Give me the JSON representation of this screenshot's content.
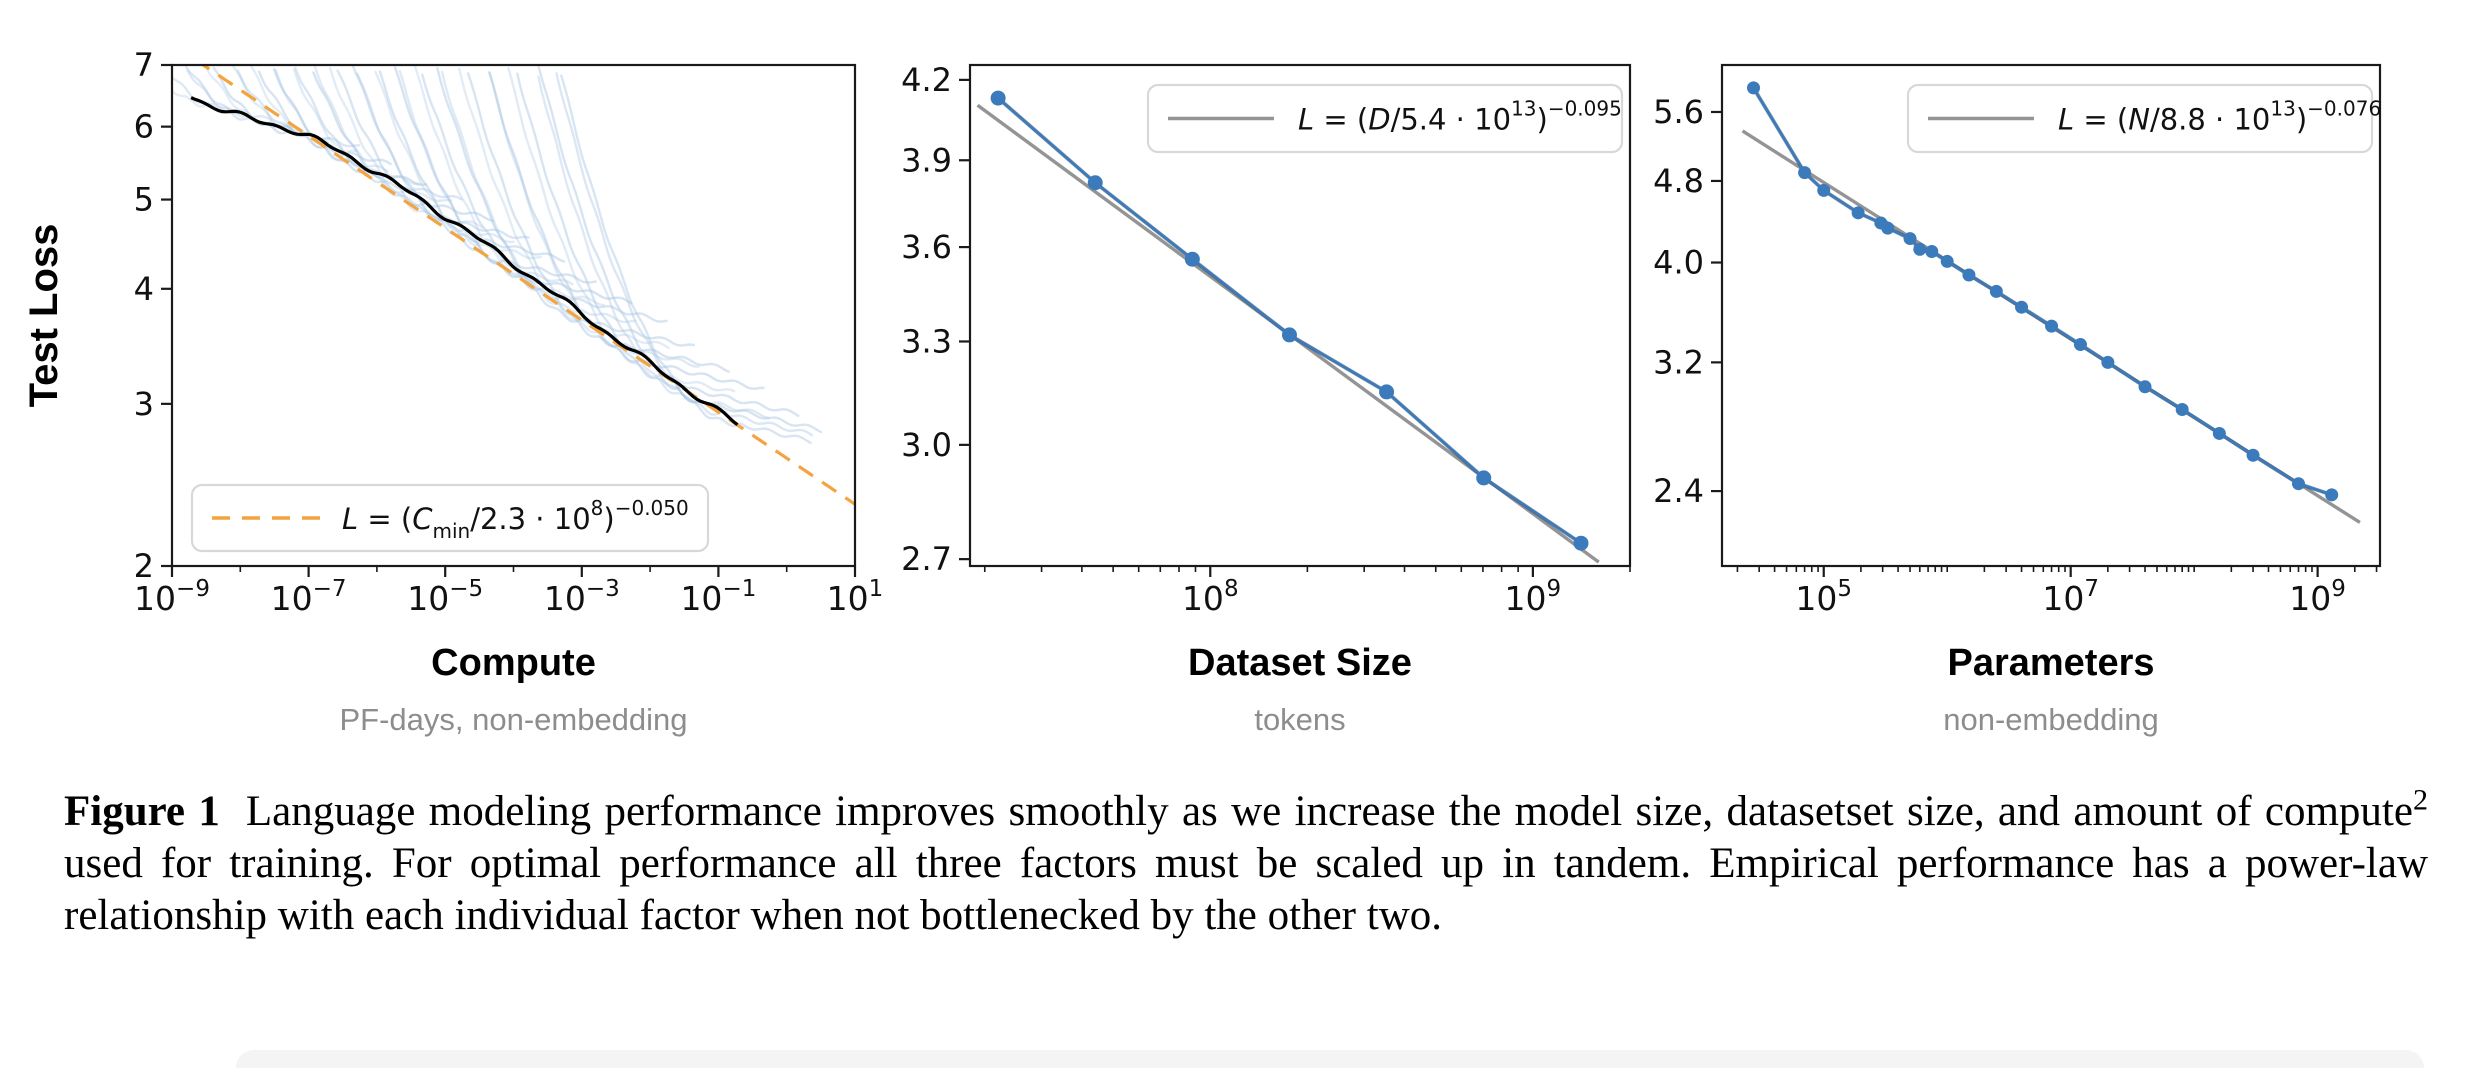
{
  "figure": {
    "caption": {
      "label": "Figure 1",
      "body_pre": "Language modeling performance improves smoothly as we increase the model size, datasetset size, and amount of compute",
      "superscript": "2",
      "body_post": " used for training.  For optimal performance all three factors must be scaled up in tandem.  Empirical performance has a power-law relationship with each individual factor when not bottlenecked by the other two."
    }
  },
  "colors": {
    "spine": "#1a1a1a",
    "tick_label": "#111111",
    "subtitle_gray": "#8d8d8d",
    "legend_border": "#d8d8d8",
    "orange_fit": "#f4a43f",
    "gray_fit": "#949494",
    "data_blue": "#3b7bbc",
    "data_dark_blue": "#1c3d5c",
    "curve_blue": "#a7c4e2",
    "envelope_black": "#000000"
  },
  "chart_data": [
    {
      "name": "compute",
      "type": "line",
      "title": "Compute",
      "subtitle": "PF-days, non-embedding",
      "ylabel": "Test Loss",
      "xscale": "log",
      "yscale": "log",
      "xlim": [
        1e-09,
        10
      ],
      "ylim": [
        2,
        7
      ],
      "xticks": [
        -9,
        -7,
        -5,
        -3,
        -1,
        1
      ],
      "minor_subs": false,
      "yticks": [
        7,
        6,
        5,
        4,
        3,
        2
      ],
      "ytick_labels": [
        "7",
        "6",
        "5",
        "4",
        "3",
        "2"
      ],
      "legend": {
        "position": "lower-left",
        "sample": "dashed-orange",
        "tokens": [
          [
            "i",
            "L"
          ],
          [
            "n",
            " = ("
          ],
          [
            "i",
            "C"
          ],
          [
            "sub",
            "min"
          ],
          [
            "n",
            "/2.3 · 10"
          ],
          [
            "sup",
            "8"
          ],
          [
            "n",
            ")"
          ],
          [
            "sup",
            "−0.050"
          ]
        ]
      },
      "fit": {
        "coef": 230000000.0,
        "exponent": -0.05,
        "color": "#f4a43f",
        "style": "dashed"
      },
      "envelope": {
        "color": "#000000",
        "range": [
          -8.72,
          -0.68
        ],
        "bump": [
          0.03,
          -5,
          6,
          0.095,
          -8.75,
          1.8
        ]
      },
      "curves_color": "#a7c4e2",
      "curves": [
        [
          -8.45,
          0.14,
          0.3,
          0.3
        ],
        [
          -8.15,
          0.125,
          0.35,
          0.38
        ],
        [
          -7.9,
          0.15,
          0.4,
          0.35
        ],
        [
          -7.65,
          0.11,
          0.45,
          0.42
        ],
        [
          -7.45,
          0.135,
          0.3,
          0.3
        ],
        [
          -7.25,
          0.12,
          0.55,
          0.45
        ],
        [
          -7.05,
          0.15,
          0.4,
          0.33
        ],
        [
          -6.85,
          0.115,
          0.6,
          0.4
        ],
        [
          -6.65,
          0.14,
          0.35,
          0.3
        ],
        [
          -6.45,
          0.125,
          0.7,
          0.45
        ],
        [
          -6.25,
          0.15,
          0.45,
          0.35
        ],
        [
          -6.05,
          0.118,
          0.8,
          0.48
        ],
        [
          -5.85,
          0.138,
          0.5,
          0.33
        ],
        [
          -5.65,
          0.122,
          0.9,
          0.42
        ],
        [
          -5.45,
          0.148,
          0.55,
          0.36
        ],
        [
          -5.25,
          0.115,
          1.0,
          0.47
        ],
        [
          -5.05,
          0.135,
          0.6,
          0.32
        ],
        [
          -4.85,
          0.125,
          1.1,
          0.44
        ],
        [
          -4.65,
          0.145,
          0.65,
          0.35
        ],
        [
          -4.45,
          0.118,
          1.2,
          0.46
        ],
        [
          -4.25,
          0.138,
          0.7,
          0.33
        ],
        [
          -4.05,
          0.126,
          1.3,
          0.45
        ],
        [
          -3.85,
          0.147,
          0.75,
          0.36
        ],
        [
          -3.65,
          0.117,
          1.4,
          0.47
        ],
        [
          -3.45,
          0.136,
          0.8,
          0.32
        ],
        [
          -3.25,
          0.124,
          1.5,
          0.44
        ],
        [
          -3.05,
          0.144,
          0.85,
          0.35
        ],
        [
          -2.85,
          0.119,
          1.55,
          0.46
        ],
        [
          -2.62,
          0.134,
          0.9,
          0.33
        ],
        [
          -2.4,
          0.127,
          1.6,
          0.45
        ],
        [
          -2.18,
          0.142,
          0.95,
          0.36
        ],
        [
          -1.95,
          0.12,
          1.65,
          0.47
        ],
        [
          -1.72,
          0.133,
          1.0,
          0.34
        ],
        [
          -1.5,
          0.126,
          1.7,
          0.45
        ],
        [
          -1.28,
          0.14,
          1.05,
          0.37
        ],
        [
          -1.05,
          0.122,
          1.6,
          0.46
        ],
        [
          -0.88,
          0.132,
          1.3,
          0.4
        ],
        [
          -0.72,
          0.125,
          1.1,
          0.44
        ]
      ]
    },
    {
      "name": "dataset-size",
      "type": "scatter-line",
      "title": "Dataset Size",
      "subtitle": "tokens",
      "xscale": "log",
      "yscale": "log",
      "xlim": [
        18000000.0,
        2000000000.0
      ],
      "ylim": [
        2.683,
        4.258
      ],
      "xticks": [
        8,
        9
      ],
      "minor_subs": true,
      "yticks": [
        4.2,
        3.9,
        3.6,
        3.3,
        3.0,
        2.7
      ],
      "ytick_labels": [
        "4.2",
        "3.9",
        "3.6",
        "3.3",
        "3.0",
        "2.7"
      ],
      "legend": {
        "position": "upper-right",
        "sample": "solid-gray",
        "tokens": [
          [
            "i",
            "L"
          ],
          [
            "n",
            " = ("
          ],
          [
            "i",
            "D"
          ],
          [
            "n",
            "/5.4 · 10"
          ],
          [
            "sup",
            "13"
          ],
          [
            "n",
            ")"
          ],
          [
            "sup",
            "−0.095"
          ]
        ]
      },
      "fit": {
        "scale": 54000000000000.0,
        "exponent": -0.095,
        "color": "#949494",
        "range": [
          19000000.0,
          1600000000.0
        ],
        "style": "solid"
      },
      "series_color": "#3b7bbc",
      "series_dark": "#1c3d5c",
      "marker_r": 7.5,
      "points": [
        [
          22000000.0,
          4.13
        ],
        [
          44000000.0,
          3.82
        ],
        [
          88000000.0,
          3.56
        ],
        [
          176000000.0,
          3.32
        ],
        [
          352000000.0,
          3.15
        ],
        [
          704000000.0,
          2.91
        ],
        [
          1410000000.0,
          2.74
        ]
      ]
    },
    {
      "name": "parameters",
      "type": "scatter-line",
      "title": "Parameters",
      "subtitle": "non-embedding",
      "xscale": "log",
      "yscale": "log",
      "xlim": [
        15000.0,
        3200000000.0
      ],
      "ylim": [
        2.03,
        6.22
      ],
      "xticks": [
        5,
        7,
        9
      ],
      "minor_subs": true,
      "yticks": [
        5.6,
        4.8,
        4.0,
        3.2,
        2.4
      ],
      "ytick_labels": [
        "5.6",
        "4.8",
        "4.0",
        "3.2",
        "2.4"
      ],
      "legend": {
        "position": "upper-right",
        "sample": "solid-gray",
        "tokens": [
          [
            "i",
            "L"
          ],
          [
            "n",
            " = ("
          ],
          [
            "i",
            "N"
          ],
          [
            "n",
            "/8.8 · 10"
          ],
          [
            "sup",
            "13"
          ],
          [
            "n",
            ")"
          ],
          [
            "sup",
            "−0.076"
          ]
        ]
      },
      "fit": {
        "scale": 88000000000000.0,
        "exponent": -0.076,
        "color": "#949494",
        "range": [
          22000.0,
          2200000000.0
        ],
        "style": "solid"
      },
      "series_color": "#3b7bbc",
      "series_dark": "#1c3d5c",
      "marker_r": 6.5,
      "points": [
        [
          27000.0,
          5.91
        ],
        [
          70000.0,
          4.89
        ],
        [
          100000.0,
          4.7
        ],
        [
          190000.0,
          4.47
        ],
        [
          290000.0,
          4.37
        ],
        [
          330000.0,
          4.32
        ],
        [
          500000.0,
          4.22
        ],
        [
          600000.0,
          4.12
        ],
        [
          750000.0,
          4.1
        ],
        [
          1000000.0,
          4.01
        ],
        [
          1500000.0,
          3.89
        ],
        [
          2500000.0,
          3.75
        ],
        [
          4000000.0,
          3.62
        ],
        [
          7000000.0,
          3.47
        ],
        [
          12000000.0,
          3.33
        ],
        [
          20000000.0,
          3.2
        ],
        [
          40000000.0,
          3.03
        ],
        [
          80000000.0,
          2.88
        ],
        [
          160000000.0,
          2.73
        ],
        [
          300000000.0,
          2.6
        ],
        [
          700000000.0,
          2.44
        ],
        [
          1300000000.0,
          2.38
        ]
      ]
    }
  ]
}
